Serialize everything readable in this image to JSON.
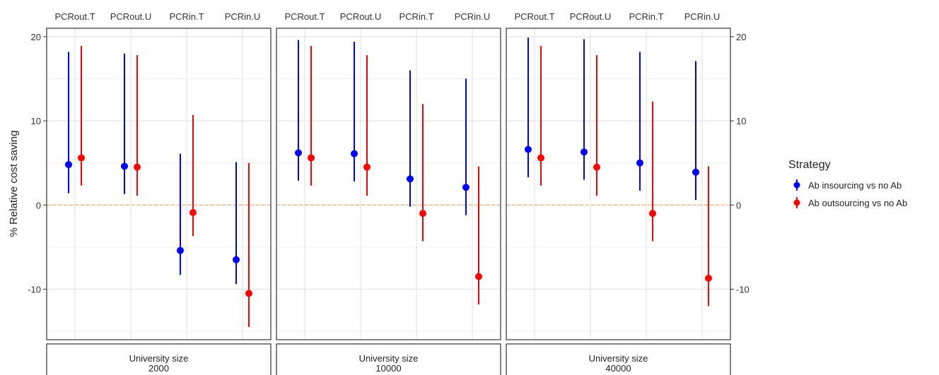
{
  "chart_data": {
    "type": "errorbar",
    "ylabel": "% Relative cost saving",
    "ylim": [
      -16,
      21
    ],
    "y_ticks": [
      -10,
      0,
      10,
      20
    ],
    "grid": true,
    "reference_line": {
      "y": 0,
      "color": "#e8a26a",
      "style": "dashed"
    },
    "categories": [
      "PCRout.T",
      "PCRout.U",
      "PCRin.T",
      "PCRin.U"
    ],
    "facet_strip_label": "University size",
    "legend": {
      "title": "Strategy",
      "placement": "right",
      "items": [
        {
          "name": "Ab insourcing vs no Ab",
          "color": "#0000ff"
        },
        {
          "name": "Ab outsourcing vs no Ab",
          "color": "#ff0000"
        }
      ]
    },
    "facets": [
      {
        "size": "2000",
        "series": [
          {
            "name": "Ab insourcing vs no Ab",
            "color": "#0000ff",
            "points": [
              {
                "category": "PCRout.T",
                "y": 4.8,
                "low": 1.4,
                "high": 18.2
              },
              {
                "category": "PCRout.U",
                "y": 4.6,
                "low": 1.3,
                "high": 18.0
              },
              {
                "category": "PCRin.T",
                "y": -5.4,
                "low": -8.3,
                "high": 6.1
              },
              {
                "category": "PCRin.U",
                "y": -6.5,
                "low": -9.4,
                "high": 5.1
              }
            ]
          },
          {
            "name": "Ab outsourcing vs no Ab",
            "color": "#ff0000",
            "points": [
              {
                "category": "PCRout.T",
                "y": 5.6,
                "low": 2.3,
                "high": 18.9
              },
              {
                "category": "PCRout.U",
                "y": 4.5,
                "low": 1.1,
                "high": 17.8
              },
              {
                "category": "PCRin.T",
                "y": -0.9,
                "low": -3.7,
                "high": 10.7
              },
              {
                "category": "PCRin.U",
                "y": -10.5,
                "low": -14.5,
                "high": 5.0
              }
            ]
          }
        ]
      },
      {
        "size": "10000",
        "series": [
          {
            "name": "Ab insourcing vs no Ab",
            "color": "#0000ff",
            "points": [
              {
                "category": "PCRout.T",
                "y": 6.2,
                "low": 2.9,
                "high": 19.6
              },
              {
                "category": "PCRout.U",
                "y": 6.1,
                "low": 2.8,
                "high": 19.4
              },
              {
                "category": "PCRin.T",
                "y": 3.1,
                "low": -0.2,
                "high": 16.0
              },
              {
                "category": "PCRin.U",
                "y": 2.1,
                "low": -1.2,
                "high": 15.0
              }
            ]
          },
          {
            "name": "Ab outsourcing vs no Ab",
            "color": "#ff0000",
            "points": [
              {
                "category": "PCRout.T",
                "y": 5.6,
                "low": 2.3,
                "high": 18.9
              },
              {
                "category": "PCRout.U",
                "y": 4.5,
                "low": 1.1,
                "high": 17.8
              },
              {
                "category": "PCRin.T",
                "y": -1.0,
                "low": -4.3,
                "high": 12.0
              },
              {
                "category": "PCRin.U",
                "y": -8.5,
                "low": -11.8,
                "high": 4.6
              }
            ]
          }
        ]
      },
      {
        "size": "40000",
        "series": [
          {
            "name": "Ab insourcing vs no Ab",
            "color": "#0000ff",
            "points": [
              {
                "category": "PCRout.T",
                "y": 6.6,
                "low": 3.3,
                "high": 19.9
              },
              {
                "category": "PCRout.U",
                "y": 6.3,
                "low": 3.0,
                "high": 19.7
              },
              {
                "category": "PCRin.T",
                "y": 5.0,
                "low": 1.7,
                "high": 18.2
              },
              {
                "category": "PCRin.U",
                "y": 3.9,
                "low": 0.6,
                "high": 17.1
              }
            ]
          },
          {
            "name": "Ab outsourcing vs no Ab",
            "color": "#ff0000",
            "points": [
              {
                "category": "PCRout.T",
                "y": 5.6,
                "low": 2.3,
                "high": 18.9
              },
              {
                "category": "PCRout.U",
                "y": 4.5,
                "low": 1.1,
                "high": 17.8
              },
              {
                "category": "PCRin.T",
                "y": -1.0,
                "low": -4.3,
                "high": 12.3
              },
              {
                "category": "PCRin.U",
                "y": -8.7,
                "low": -12.0,
                "high": 4.6
              }
            ]
          }
        ]
      }
    ]
  }
}
